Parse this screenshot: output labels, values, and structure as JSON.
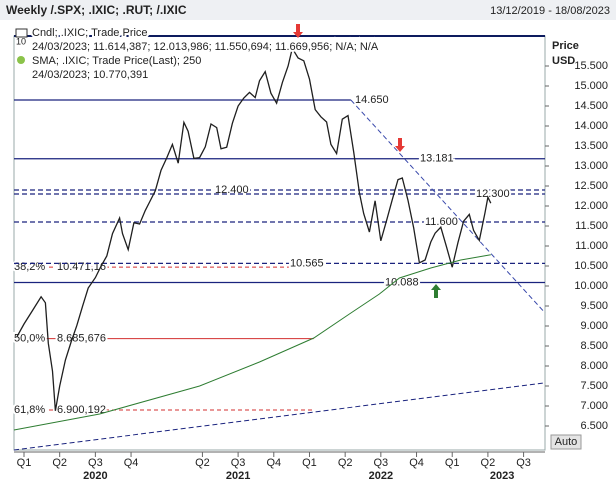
{
  "header": {
    "title": "Weekly /.SPX; .IXIC; .RUT; /.IXIC",
    "date_range": "13/12/2019 - 18/08/2023"
  },
  "chart_data": {
    "type": "line",
    "corner_label": "10",
    "y_axis_label": "Price",
    "y_axis_unit": "USD",
    "scale_mode": "Auto",
    "xlim": [
      2019.93,
      2023.65
    ],
    "ylim": [
      5.9,
      16.25
    ],
    "xticks": [
      {
        "value": 2020.0,
        "label": "Q1"
      },
      {
        "value": 2020.25,
        "label": "Q2"
      },
      {
        "value": 2020.5,
        "label": "Q3"
      },
      {
        "value": 2020.75,
        "label": "Q4"
      },
      {
        "value": 2021.25,
        "label": "Q2"
      },
      {
        "value": 2021.5,
        "label": "Q3"
      },
      {
        "value": 2021.75,
        "label": "Q4"
      },
      {
        "value": 2022.0,
        "label": "Q1"
      },
      {
        "value": 2022.25,
        "label": "Q2"
      },
      {
        "value": 2022.5,
        "label": "Q3"
      },
      {
        "value": 2022.75,
        "label": "Q4"
      },
      {
        "value": 2023.0,
        "label": "Q1"
      },
      {
        "value": 2023.25,
        "label": "Q2"
      },
      {
        "value": 2023.5,
        "label": "Q3"
      }
    ],
    "year_labels": [
      {
        "value": 2020.5,
        "label": "2020"
      },
      {
        "value": 2021.5,
        "label": "2021"
      },
      {
        "value": 2022.5,
        "label": "2022"
      },
      {
        "value": 2023.35,
        "label": "2023"
      }
    ],
    "yticks": [
      {
        "value": 6.5,
        "label": "6.500"
      },
      {
        "value": 7,
        "label": "7.000"
      },
      {
        "value": 7.5,
        "label": "7.500"
      },
      {
        "value": 8,
        "label": "8.000"
      },
      {
        "value": 8.5,
        "label": "8.500"
      },
      {
        "value": 9,
        "label": "9.000"
      },
      {
        "value": 9.5,
        "label": "9.500"
      },
      {
        "value": 10,
        "label": "10.000"
      },
      {
        "value": 10.5,
        "label": "10.500"
      },
      {
        "value": 11,
        "label": "11.000"
      },
      {
        "value": 11.5,
        "label": "11.500"
      },
      {
        "value": 12,
        "label": "12.000"
      },
      {
        "value": 12.5,
        "label": "12.500"
      },
      {
        "value": 13,
        "label": "13.000"
      },
      {
        "value": 13.5,
        "label": "13.500"
      },
      {
        "value": 14,
        "label": "14.000"
      },
      {
        "value": 14.5,
        "label": "14.500"
      },
      {
        "value": 15,
        "label": "15.000"
      },
      {
        "value": 15.5,
        "label": "15.500"
      }
    ],
    "series": [
      {
        "name": "Cndl; .IXIC; Trade Price",
        "details": "24/03/2023; 11.614,387; 12.013,986; 11.550,694; 11.669,956; N/A; N/A",
        "color": "#1f1f1f",
        "x": [
          2019.95,
          2020.0,
          2020.06,
          2020.12,
          2020.15,
          2020.17,
          2020.2,
          2020.22,
          2020.25,
          2020.29,
          2020.33,
          2020.37,
          2020.41,
          2020.45,
          2020.5,
          2020.54,
          2020.58,
          2020.62,
          2020.67,
          2020.69,
          2020.73,
          2020.77,
          2020.81,
          2020.85,
          2020.88,
          2020.92,
          2020.96,
          2021.0,
          2021.04,
          2021.08,
          2021.12,
          2021.15,
          2021.19,
          2021.23,
          2021.27,
          2021.31,
          2021.35,
          2021.38,
          2021.42,
          2021.46,
          2021.5,
          2021.54,
          2021.58,
          2021.62,
          2021.65,
          2021.69,
          2021.73,
          2021.77,
          2021.81,
          2021.85,
          2021.88,
          2021.92,
          2021.96,
          2022.0,
          2022.04,
          2022.08,
          2022.12,
          2022.15,
          2022.19,
          2022.23,
          2022.27,
          2022.31,
          2022.35,
          2022.38,
          2022.42,
          2022.46,
          2022.5,
          2022.54,
          2022.58,
          2022.62,
          2022.65,
          2022.69,
          2022.73,
          2022.77,
          2022.81,
          2022.85,
          2022.88,
          2022.92,
          2022.96,
          2023.0,
          2023.04,
          2023.08,
          2023.12,
          2023.15,
          2023.19,
          2023.23,
          2023.25,
          2023.27
        ],
        "values": [
          8.73,
          9.05,
          9.39,
          9.73,
          9.58,
          8.57,
          7.87,
          6.88,
          7.5,
          8.15,
          8.6,
          9.01,
          9.49,
          9.95,
          10.21,
          10.5,
          10.75,
          11.31,
          11.7,
          11.31,
          10.91,
          11.58,
          11.55,
          11.89,
          12.1,
          12.38,
          12.89,
          13.2,
          13.54,
          13.07,
          14.09,
          13.87,
          13.19,
          13.21,
          13.48,
          14.05,
          13.96,
          13.43,
          13.47,
          14.07,
          14.5,
          14.7,
          14.84,
          14.71,
          15.13,
          15.36,
          14.82,
          14.57,
          15.09,
          15.5,
          15.94,
          15.7,
          15.63,
          15.17,
          14.41,
          14.23,
          14.1,
          13.54,
          13.31,
          14.17,
          14.26,
          13.35,
          12.33,
          11.81,
          11.35,
          12.13,
          11.13,
          11.64,
          12.16,
          12.66,
          12.7,
          12.14,
          11.45,
          10.58,
          10.65,
          11.1,
          11.32,
          11.47,
          10.98,
          10.47,
          11.08,
          11.62,
          11.79,
          11.39,
          11.14,
          11.83,
          12.22,
          12.07
        ]
      },
      {
        "name": "SMA; .IXIC; Trade Price(Last); 250",
        "details": "24/03/2023; 10.770,391",
        "color": "#2e7d32",
        "x": [
          2019.93,
          2020.53,
          2021.23,
          2021.65,
          2022.03,
          2022.28,
          2022.49,
          2022.63,
          2022.85,
          2023.06,
          2023.27
        ],
        "values": [
          6.4,
          6.8,
          7.5,
          8.1,
          8.7,
          9.3,
          9.8,
          10.2,
          10.45,
          10.65,
          10.78
        ]
      }
    ],
    "levels": [
      {
        "value": 14.65,
        "label": "14.650",
        "style": "solid",
        "to": 2022.29
      },
      {
        "value": 13.181,
        "label": "13.181",
        "style": "solid"
      },
      {
        "value": 12.4,
        "label": "12.400",
        "style": "dashed"
      },
      {
        "value": 12.3,
        "label": "12.300",
        "style": "dashed"
      },
      {
        "value": 11.6,
        "label": "11.600",
        "style": "dashed"
      },
      {
        "value": 10.565,
        "label": "10.565",
        "style": "dashed"
      },
      {
        "value": 10.088,
        "label": "10.088",
        "style": "solid"
      }
    ],
    "level_color": "#1a237e",
    "fibonacci": [
      {
        "pct_label": "38,2%",
        "value": 10.47116,
        "label": "10.471,16",
        "style": "dashed"
      },
      {
        "pct_label": "50,0%",
        "value": 8.685676,
        "label": "8.685,676",
        "style": "solid"
      },
      {
        "pct_label": "61,8%",
        "value": 6.900192,
        "label": "6.900,192",
        "style": "dashed"
      }
    ],
    "fib_to": 2022.03,
    "fib_color": "#d32f2f",
    "trendlines": [
      {
        "x": [
          2022.29,
          2023.65
        ],
        "y": [
          14.65,
          9.33
        ]
      },
      {
        "x": [
          2019.93,
          2023.65
        ],
        "y": [
          5.9,
          7.58
        ]
      }
    ]
  }
}
